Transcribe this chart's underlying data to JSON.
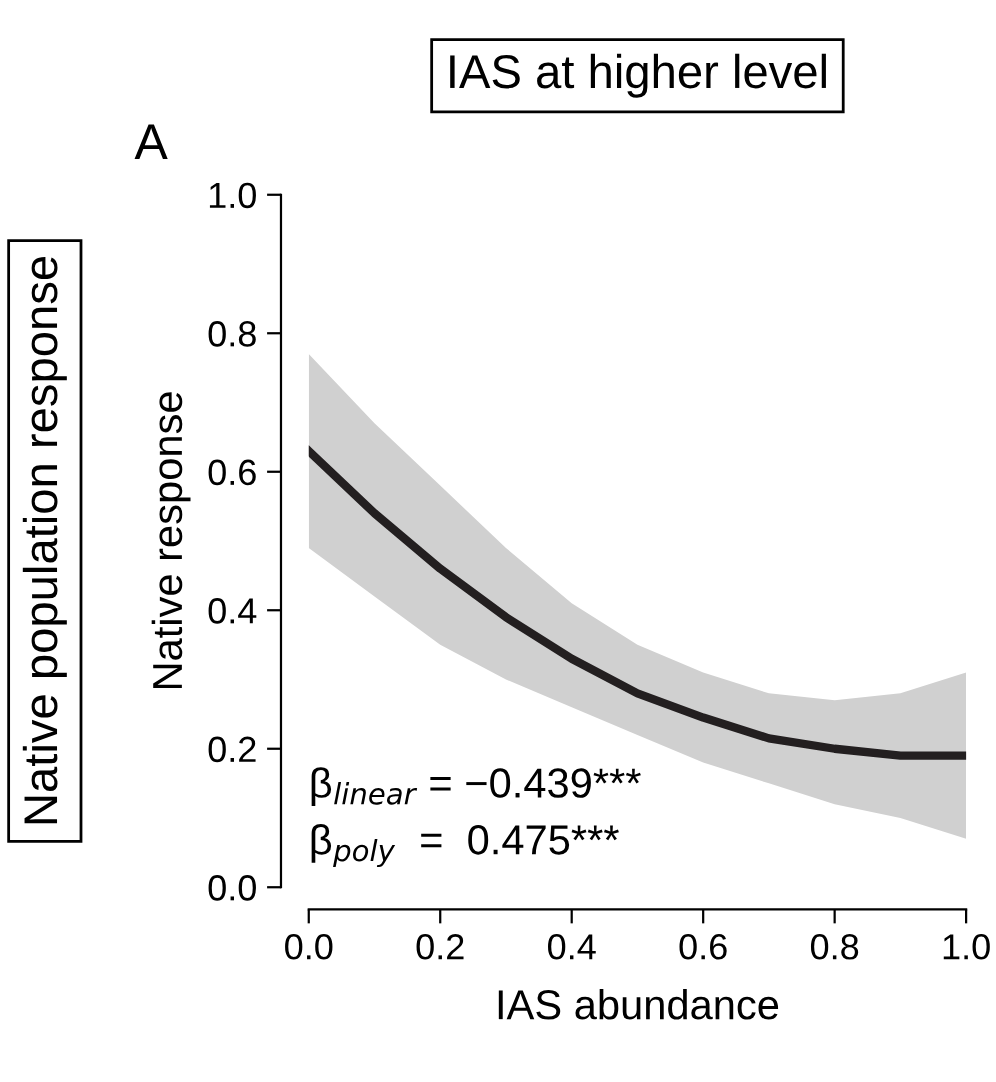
{
  "chart_data": {
    "type": "line",
    "title": "IAS at higher level",
    "xlabel": "IAS abundance",
    "ylabel": "Native response",
    "x": [
      0,
      0.1,
      0.2,
      0.3,
      0.4,
      0.5,
      0.6,
      0.7,
      0.8,
      0.9,
      1.0
    ],
    "series": [
      {
        "color": "#231f20",
        "values": [
          0.63,
          0.54,
          0.46,
          0.39,
          0.33,
          0.28,
          0.245,
          0.215,
          0.2,
          0.19,
          0.19
        ],
        "lower": [
          0.49,
          0.42,
          0.35,
          0.3,
          0.26,
          0.22,
          0.18,
          0.15,
          0.12,
          0.1,
          0.07
        ],
        "upper": [
          0.77,
          0.67,
          0.58,
          0.49,
          0.41,
          0.35,
          0.31,
          0.28,
          0.27,
          0.28,
          0.31
        ]
      }
    ],
    "xlim": [
      0,
      1
    ],
    "ylim": [
      0,
      1
    ],
    "xticks": [
      {
        "value": 0,
        "label": "0.0"
      },
      0.2,
      0.4,
      0.6,
      0.8,
      {
        "value": 1,
        "label": "1.0"
      }
    ],
    "yticks": [
      {
        "value": 0,
        "label": "0.0"
      },
      0.2,
      0.4,
      0.6,
      0.8,
      {
        "value": 1,
        "label": "1.0"
      }
    ],
    "grid": false,
    "legend": false,
    "marker": "none",
    "line_style": "solid",
    "annotations": [
      "Native population response",
      "A",
      "β$_{linear}$ = −0.439***",
      "β$_{poly}$  =  0.475***"
    ]
  }
}
